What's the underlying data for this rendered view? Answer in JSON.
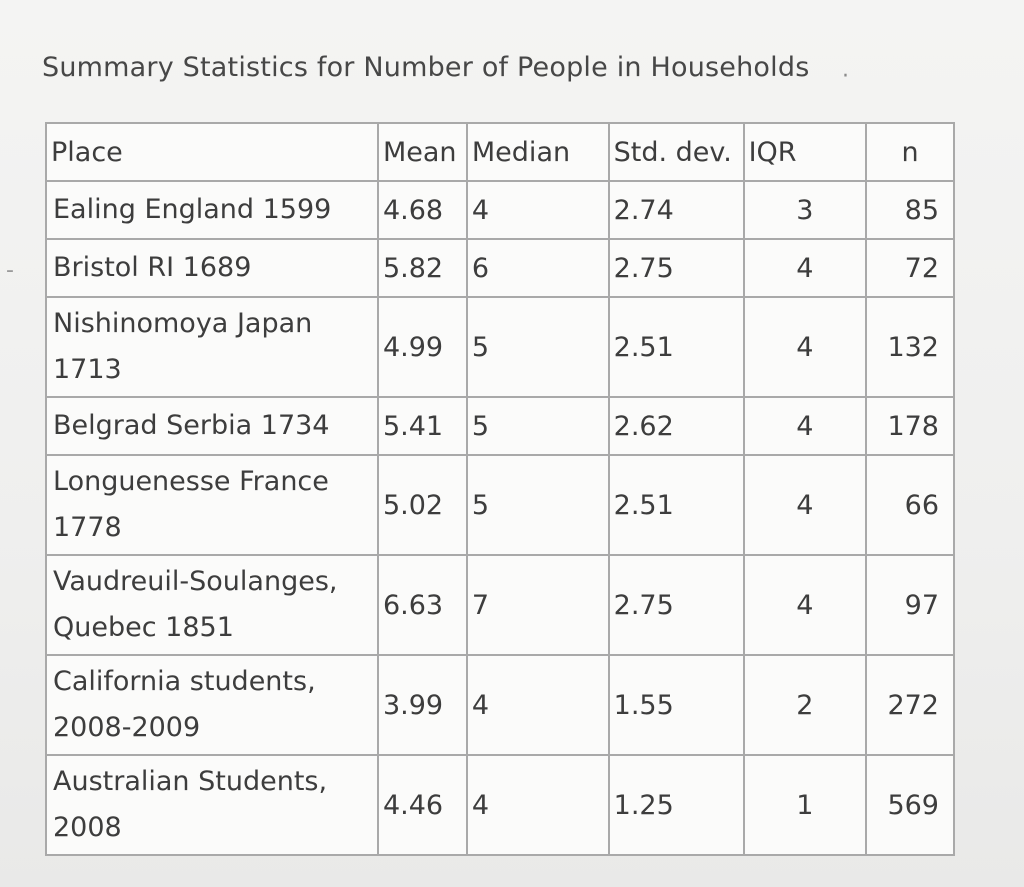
{
  "title": "Summary Statistics for Number of People in Households",
  "stray_marks": {
    "dot": "·",
    "dash": "-"
  },
  "table": {
    "headers": [
      "Place",
      "Mean",
      "Median",
      "Std. dev.",
      "IQR",
      "n"
    ],
    "rows": [
      [
        "Ealing England 1599",
        "4.68",
        "4",
        "2.74",
        "3",
        "85"
      ],
      [
        "Bristol RI 1689",
        "5.82",
        "6",
        "2.75",
        "4",
        "72"
      ],
      [
        "Nishinomoya Japan 1713",
        "4.99",
        "5",
        "2.51",
        "4",
        "132"
      ],
      [
        "Belgrad Serbia 1734",
        "5.41",
        "5",
        "2.62",
        "4",
        "178"
      ],
      [
        "Longuenesse France 1778",
        "5.02",
        "5",
        "2.51",
        "4",
        "66"
      ],
      [
        "Vaudreuil-Soulanges, Quebec 1851",
        "6.63",
        "7",
        "2.75",
        "4",
        "97"
      ],
      [
        "California students, 2008-2009",
        "3.99",
        "4",
        "1.55",
        "2",
        "272"
      ],
      [
        "Australian Students, 2008",
        "4.46",
        "4",
        "1.25",
        "1",
        "569"
      ]
    ]
  }
}
